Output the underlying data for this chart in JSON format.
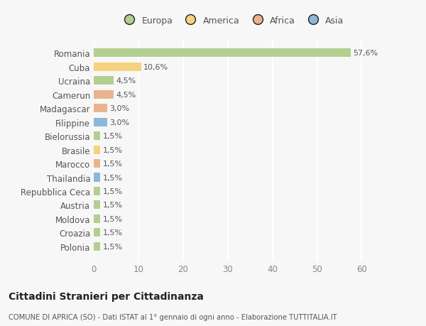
{
  "countries": [
    "Romania",
    "Cuba",
    "Ucraina",
    "Camerun",
    "Madagascar",
    "Filippine",
    "Bielorussia",
    "Brasile",
    "Marocco",
    "Thailandia",
    "Repubblica Ceca",
    "Austria",
    "Moldova",
    "Croazia",
    "Polonia"
  ],
  "values": [
    57.6,
    10.6,
    4.5,
    4.5,
    3.0,
    3.0,
    1.5,
    1.5,
    1.5,
    1.5,
    1.5,
    1.5,
    1.5,
    1.5,
    1.5
  ],
  "labels": [
    "57,6%",
    "10,6%",
    "4,5%",
    "4,5%",
    "3,0%",
    "3,0%",
    "1,5%",
    "1,5%",
    "1,5%",
    "1,5%",
    "1,5%",
    "1,5%",
    "1,5%",
    "1,5%",
    "1,5%"
  ],
  "continents": [
    "Europa",
    "America",
    "Europa",
    "Africa",
    "Africa",
    "Asia",
    "Europa",
    "America",
    "Africa",
    "Asia",
    "Europa",
    "Europa",
    "Europa",
    "Europa",
    "Europa"
  ],
  "continent_colors": {
    "Europa": "#a8c87e",
    "America": "#f5cc6a",
    "Africa": "#e8a87c",
    "Asia": "#7bacd4"
  },
  "legend_order": [
    "Europa",
    "America",
    "Africa",
    "Asia"
  ],
  "title": "Cittadini Stranieri per Cittadinanza",
  "subtitle": "COMUNE DI APRICA (SO) - Dati ISTAT al 1° gennaio di ogni anno - Elaborazione TUTTITALIA.IT",
  "xlim": [
    0,
    62
  ],
  "xticks": [
    0,
    10,
    20,
    30,
    40,
    50,
    60
  ],
  "background_color": "#f7f7f7",
  "bar_alpha": 0.85,
  "grid_color": "#ffffff",
  "label_color": "#555555",
  "tick_color": "#888888"
}
